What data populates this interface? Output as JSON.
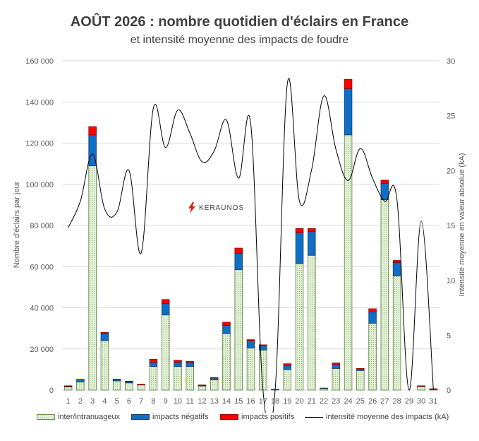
{
  "title": "AOÛT 2026 : nombre quotidien d'éclairs en France",
  "subtitle": "et intensité moyenne des impacts de foudre",
  "logo_text": "KERAUNOS",
  "colors": {
    "intra": "#e2f0d9",
    "negative": "#0f6fc6",
    "positive": "#ff0000",
    "line": "#000000"
  },
  "chart_data": {
    "type": "bar",
    "stacked": true,
    "categories": [
      "1",
      "2",
      "3",
      "4",
      "5",
      "6",
      "7",
      "8",
      "9",
      "10",
      "11",
      "12",
      "13",
      "14",
      "15",
      "16",
      "17",
      "18",
      "19",
      "20",
      "21",
      "22",
      "23",
      "24",
      "25",
      "26",
      "27",
      "28",
      "29",
      "30",
      "31"
    ],
    "series": [
      {
        "name": "inter/intranuageux",
        "axis": "left",
        "values": [
          1500,
          4000,
          109000,
          24000,
          4500,
          3500,
          2500,
          11500,
          36500,
          11500,
          11500,
          2000,
          5000,
          27500,
          58500,
          20500,
          19500,
          300,
          10000,
          61500,
          65500,
          800,
          10500,
          124000,
          9500,
          32500,
          92500,
          55500,
          0,
          1800,
          500
        ]
      },
      {
        "name": "impacts négatifs",
        "axis": "left",
        "values": [
          500,
          1000,
          15000,
          3500,
          700,
          700,
          300,
          2000,
          5500,
          2000,
          2000,
          400,
          900,
          4000,
          8000,
          3500,
          2000,
          100,
          2000,
          15000,
          11500,
          200,
          2000,
          22500,
          800,
          5500,
          8000,
          6500,
          0,
          200,
          100
        ]
      },
      {
        "name": "impacts positifs",
        "axis": "left",
        "values": [
          100,
          200,
          4000,
          500,
          100,
          100,
          50,
          1500,
          2000,
          1000,
          500,
          100,
          200,
          1500,
          2500,
          500,
          500,
          0,
          800,
          2000,
          1500,
          0,
          700,
          4500,
          200,
          1500,
          1500,
          1000,
          0,
          100,
          50
        ]
      },
      {
        "name": "intensité moyenne des impacts (kA)",
        "axis": "right",
        "type": "line",
        "values": [
          14.8,
          17.2,
          21.5,
          16.5,
          16.2,
          20,
          12.5,
          25.7,
          22.1,
          25.5,
          23.4,
          20.8,
          21.8,
          24.6,
          19.3,
          24.2,
          0,
          0,
          27.9,
          17.2,
          20.1,
          26.8,
          21.9,
          19.1,
          22,
          19.3,
          17.2,
          17.4,
          0,
          15.4,
          0
        ]
      }
    ],
    "ylabel": "Nombre d'éclairs par jour",
    "y2label": "Intensité moyenne en valeur absolue (kA)",
    "ylim": [
      0,
      160000
    ],
    "y2lim": [
      0,
      30
    ],
    "yticks": [
      "0",
      "20 000",
      "40 000",
      "60 000",
      "80 000",
      "100 000",
      "120 000",
      "140 000",
      "160 000"
    ],
    "y2ticks": [
      "0",
      "5",
      "10",
      "15",
      "20",
      "25",
      "30"
    ],
    "grid": true,
    "legend": "bottom"
  }
}
